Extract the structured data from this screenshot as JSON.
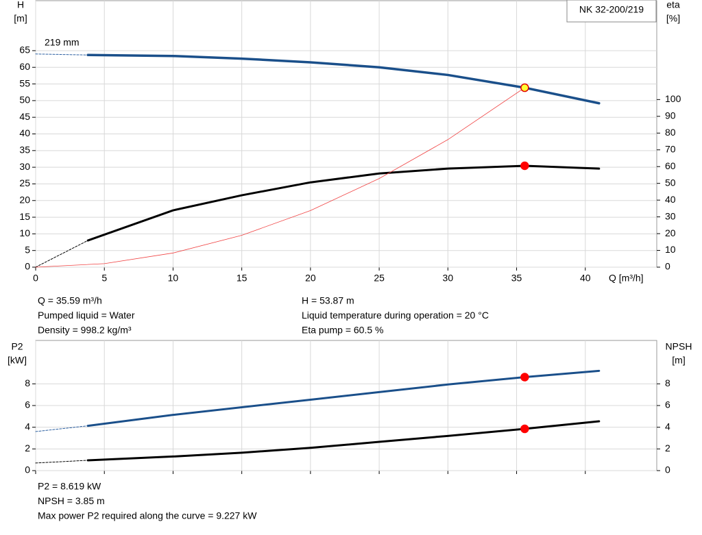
{
  "chart_data": [
    {
      "type": "line",
      "legend_box": "NK 32-200/219",
      "annotation": "219 mm",
      "xlabel": "Q [m³/h]",
      "ylabel": [
        "H",
        "[m]"
      ],
      "y2label": [
        "eta",
        "[%]"
      ],
      "xlim": [
        0,
        45.2
      ],
      "xticks": [
        0,
        5,
        10,
        15,
        20,
        25,
        30,
        35,
        40
      ],
      "xtick_labels": true,
      "ylim": [
        0,
        80
      ],
      "yticks": [
        0,
        5,
        10,
        15,
        20,
        25,
        30,
        35,
        40,
        45,
        50,
        55,
        60,
        65
      ],
      "y2lim": [
        0,
        159
      ],
      "y2ticks": [
        0,
        10,
        20,
        30,
        40,
        50,
        60,
        70,
        80,
        90,
        100
      ],
      "grid": true,
      "series": [
        {
          "color": "#1a4f8a",
          "width": 3.5,
          "dash": false,
          "x": [
            3.8,
            10,
            15,
            20,
            25,
            30,
            35.59,
            41
          ],
          "values": [
            63.7,
            63.4,
            62.6,
            61.5,
            60,
            57.7,
            53.87,
            49.2
          ]
        },
        {
          "color": "#2a5ea0",
          "width": 1,
          "dash": true,
          "x": [
            0,
            3.8
          ],
          "values": [
            64,
            63.7
          ]
        },
        {
          "color": "#000000",
          "width": 3,
          "dash": false,
          "axis": "y2",
          "x": [
            3.8,
            10,
            15,
            20,
            25,
            30,
            35.59,
            41
          ],
          "values": [
            15.9,
            33.9,
            42.9,
            50.6,
            55.9,
            58.8,
            60.5,
            58.8
          ]
        },
        {
          "color": "#000000",
          "width": 1,
          "dash": true,
          "axis": "y2",
          "x": [
            0,
            3.8
          ],
          "values": [
            0,
            15.9
          ]
        },
        {
          "color": "#f04040",
          "width": 0.8,
          "dash": false,
          "x": [
            0,
            5,
            10,
            15,
            20,
            25,
            30,
            35.59
          ],
          "values": [
            0,
            1.06,
            4.25,
            9.57,
            17.0,
            26.6,
            38.3,
            53.87
          ]
        }
      ],
      "points": [
        {
          "x": 35.59,
          "y": 53.87,
          "color": "#ffff33",
          "stroke": "#e00000"
        },
        {
          "x": 35.59,
          "y": 60.5,
          "color": "#ff0000",
          "stroke": "#ff0000",
          "axis": "y2"
        }
      ],
      "info": [
        [
          "Q = 35.59 m³/h",
          "Pumped liquid = Water",
          "Density = 998.2 kg/m³"
        ],
        [
          "H = 53.87 m",
          "Liquid temperature during operation = 20 °C",
          "Eta pump = 60.5 %"
        ]
      ]
    },
    {
      "type": "line",
      "ylabel": [
        "P2",
        "[kW]"
      ],
      "y2label": [
        "NPSH",
        "[m]"
      ],
      "xlim": [
        0,
        45.2
      ],
      "xticks": [
        0,
        5,
        10,
        15,
        20,
        25,
        30,
        35,
        40
      ],
      "xtick_labels": false,
      "ylim": [
        0,
        12
      ],
      "yticks": [
        0,
        2,
        4,
        6,
        8
      ],
      "y2lim": [
        0,
        12
      ],
      "y2ticks": [
        0,
        2,
        4,
        6,
        8
      ],
      "grid": true,
      "series": [
        {
          "color": "#1a4f8a",
          "width": 3,
          "dash": false,
          "x": [
            3.8,
            10,
            20,
            25,
            30,
            35.59,
            41
          ],
          "values": [
            4.13,
            5.14,
            6.54,
            7.24,
            7.94,
            8.619,
            9.2
          ]
        },
        {
          "color": "#2a5ea0",
          "width": 1,
          "dash": true,
          "x": [
            0,
            3.8
          ],
          "values": [
            3.6,
            4.13
          ]
        },
        {
          "color": "#000000",
          "width": 3,
          "dash": false,
          "axis": "y2",
          "x": [
            3.8,
            10,
            15,
            20,
            25,
            30,
            35.59,
            41
          ],
          "values": [
            0.95,
            1.3,
            1.65,
            2.1,
            2.65,
            3.2,
            3.85,
            4.55
          ]
        },
        {
          "color": "#000000",
          "width": 1,
          "dash": true,
          "axis": "y2",
          "x": [
            0,
            3.8
          ],
          "values": [
            0.7,
            0.95
          ]
        }
      ],
      "points": [
        {
          "x": 35.59,
          "y": 8.619,
          "color": "#ff0000",
          "stroke": "#ff0000"
        },
        {
          "x": 35.59,
          "y": 3.85,
          "color": "#ff0000",
          "stroke": "#ff0000",
          "axis": "y2"
        }
      ],
      "info": [
        [
          "P2 = 8.619 kW",
          "NPSH = 3.85 m",
          "Max power P2 required along the curve = 9.227 kW"
        ]
      ]
    }
  ]
}
